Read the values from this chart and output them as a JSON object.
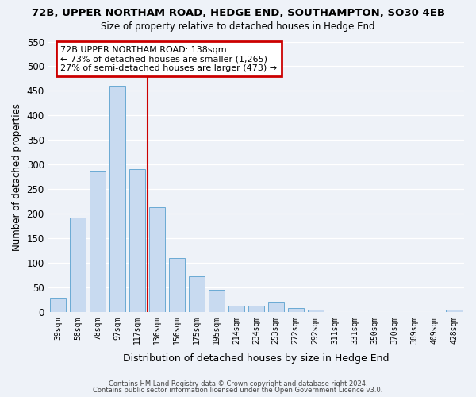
{
  "title": "72B, UPPER NORTHAM ROAD, HEDGE END, SOUTHAMPTON, SO30 4EB",
  "subtitle": "Size of property relative to detached houses in Hedge End",
  "xlabel": "Distribution of detached houses by size in Hedge End",
  "ylabel": "Number of detached properties",
  "bar_color": "#c8daf0",
  "bar_edge_color": "#6aaad4",
  "background_color": "#eef2f8",
  "grid_color": "#ffffff",
  "bin_labels": [
    "39sqm",
    "58sqm",
    "78sqm",
    "97sqm",
    "117sqm",
    "136sqm",
    "156sqm",
    "175sqm",
    "195sqm",
    "214sqm",
    "234sqm",
    "253sqm",
    "272sqm",
    "292sqm",
    "311sqm",
    "331sqm",
    "350sqm",
    "370sqm",
    "389sqm",
    "409sqm",
    "428sqm"
  ],
  "bar_heights": [
    30,
    192,
    287,
    460,
    291,
    213,
    110,
    73,
    46,
    14,
    13,
    21,
    9,
    6,
    0,
    0,
    0,
    0,
    0,
    0,
    5
  ],
  "n_bars": 21,
  "ylim": [
    0,
    550
  ],
  "yticks": [
    0,
    50,
    100,
    150,
    200,
    250,
    300,
    350,
    400,
    450,
    500,
    550
  ],
  "vline_idx": 5,
  "vline_color": "#cc0000",
  "annotation_title": "72B UPPER NORTHAM ROAD: 138sqm",
  "annotation_line1": "← 73% of detached houses are smaller (1,265)",
  "annotation_line2": "27% of semi-detached houses are larger (473) →",
  "annotation_box_color": "#cc0000",
  "footer1": "Contains HM Land Registry data © Crown copyright and database right 2024.",
  "footer2": "Contains public sector information licensed under the Open Government Licence v3.0."
}
